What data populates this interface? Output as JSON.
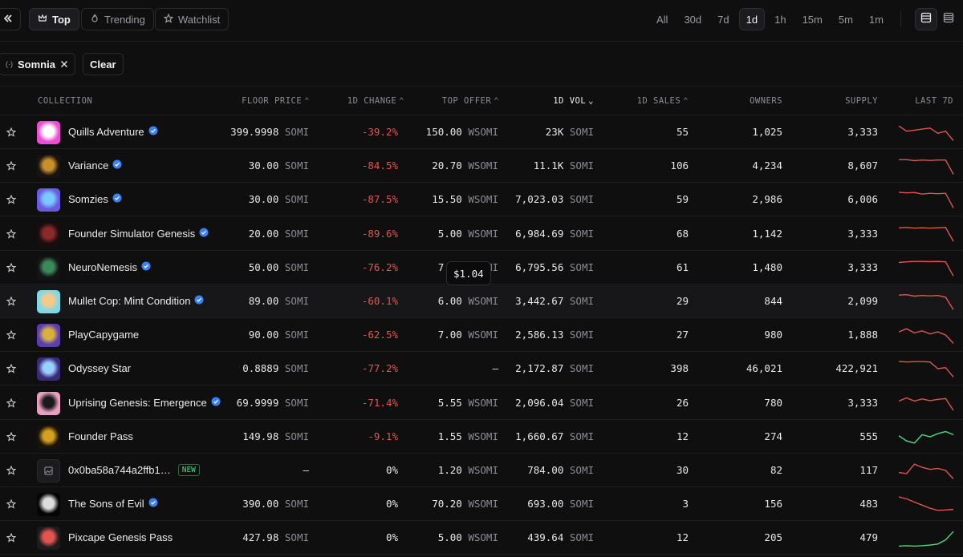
{
  "nav": {
    "tabs": [
      {
        "label": "Top",
        "icon": "crown-icon"
      },
      {
        "label": "Trending",
        "icon": "flame-icon"
      },
      {
        "label": "Watchlist",
        "icon": "star-icon"
      }
    ],
    "periods": [
      "All",
      "30d",
      "7d",
      "1d",
      "1h",
      "15m",
      "5m",
      "1m"
    ],
    "selected_period": "1d"
  },
  "filters": {
    "chain_chip": "Somnia",
    "clear_label": "Clear"
  },
  "columns": {
    "collection": "COLLECTION",
    "floor": "FLOOR PRICE",
    "change": "1D CHANGE",
    "offer": "TOP OFFER",
    "vol": "1D VOL",
    "sales": "1D SALES",
    "owners": "OWNERS",
    "supply": "SUPPLY",
    "last7": "LAST 7D"
  },
  "tooltip": "$1.04",
  "colors": {
    "negative": "#e2554f",
    "positive": "#4ade80",
    "verified": "#3b82f6"
  },
  "rows": [
    {
      "name": "Quills Adventure",
      "verified": true,
      "floor": "399.9998",
      "floor_unit": "SOMI",
      "change": "-39.2%",
      "offer": "150.00",
      "offer_unit": "WSOMI",
      "vol": "23K",
      "vol_unit": "SOMI",
      "sales": "55",
      "owners": "1,025",
      "supply": "3,333",
      "trend": "down",
      "spark": [
        0.8,
        0.55,
        0.6,
        0.65,
        0.7,
        0.45,
        0.55,
        0.1
      ],
      "avatar": [
        "#e94fd0",
        "#ffffff"
      ]
    },
    {
      "name": "Variance",
      "verified": true,
      "floor": "30.00",
      "floor_unit": "SOMI",
      "change": "-84.5%",
      "offer": "20.70",
      "offer_unit": "WSOMI",
      "vol": "11.1K",
      "vol_unit": "SOMI",
      "sales": "106",
      "owners": "4,234",
      "supply": "8,607",
      "trend": "down",
      "spark": [
        0.8,
        0.8,
        0.75,
        0.78,
        0.76,
        0.78,
        0.78,
        0.1
      ],
      "avatar": [
        "#1a1410",
        "#c8902c"
      ]
    },
    {
      "name": "Somzies",
      "verified": true,
      "floor": "30.00",
      "floor_unit": "SOMI",
      "change": "-87.5%",
      "offer": "15.50",
      "offer_unit": "WSOMI",
      "vol": "7,023.03",
      "vol_unit": "SOMI",
      "sales": "59",
      "owners": "2,986",
      "supply": "6,006",
      "trend": "down",
      "spark": [
        0.85,
        0.82,
        0.84,
        0.76,
        0.8,
        0.78,
        0.8,
        0.1
      ],
      "avatar": [
        "#6a5ae0",
        "#79c8ff"
      ]
    },
    {
      "name": "Founder Simulator Genesis",
      "verified": true,
      "floor": "20.00",
      "floor_unit": "SOMI",
      "change": "-89.6%",
      "offer": "5.00",
      "offer_unit": "WSOMI",
      "vol": "6,984.69",
      "vol_unit": "SOMI",
      "sales": "68",
      "owners": "1,142",
      "supply": "3,333",
      "trend": "down",
      "spark": [
        0.8,
        0.82,
        0.78,
        0.8,
        0.78,
        0.8,
        0.82,
        0.15
      ],
      "avatar": [
        "#1a0d0d",
        "#8b2a2a"
      ]
    },
    {
      "name": "NeuroNemesis",
      "verified": true,
      "floor": "50.00",
      "floor_unit": "SOMI",
      "change": "-76.2%",
      "offer": "7.00",
      "offer_unit": "WSOMI",
      "vol": "6,795.56",
      "vol_unit": "SOMI",
      "sales": "61",
      "owners": "1,480",
      "supply": "3,333",
      "trend": "down",
      "spark": [
        0.75,
        0.78,
        0.8,
        0.8,
        0.79,
        0.8,
        0.78,
        0.1
      ],
      "avatar": [
        "#141414",
        "#3a8a5a"
      ]
    },
    {
      "name": "Mullet Cop: Mint Condition",
      "verified": true,
      "floor": "89.00",
      "floor_unit": "SOMI",
      "change": "-60.1%",
      "offer": "6.00",
      "offer_unit": "WSOMI",
      "vol": "3,442.67",
      "vol_unit": "SOMI",
      "sales": "29",
      "owners": "844",
      "supply": "2,099",
      "trend": "down",
      "spark": [
        0.8,
        0.82,
        0.75,
        0.78,
        0.76,
        0.78,
        0.7,
        0.1
      ],
      "avatar": [
        "#7fd8e8",
        "#f4c98a"
      ]
    },
    {
      "name": "PlayCapygame",
      "verified": false,
      "floor": "90.00",
      "floor_unit": "SOMI",
      "change": "-62.5%",
      "offer": "7.00",
      "offer_unit": "WSOMI",
      "vol": "2,586.13",
      "vol_unit": "SOMI",
      "sales": "27",
      "owners": "980",
      "supply": "1,888",
      "trend": "down",
      "spark": [
        0.65,
        0.8,
        0.6,
        0.7,
        0.55,
        0.65,
        0.5,
        0.1
      ],
      "avatar": [
        "#5b3fb0",
        "#d8b040"
      ]
    },
    {
      "name": "Odyssey Star",
      "verified": false,
      "floor": "0.8889",
      "floor_unit": "SOMI",
      "change": "-77.2%",
      "offer": "—",
      "offer_unit": "",
      "vol": "2,172.87",
      "vol_unit": "SOMI",
      "sales": "398",
      "owners": "46,021",
      "supply": "422,921",
      "trend": "down",
      "spark": [
        0.85,
        0.82,
        0.84,
        0.84,
        0.82,
        0.5,
        0.55,
        0.1
      ],
      "avatar": [
        "#3a2a7a",
        "#9ad0ff"
      ]
    },
    {
      "name": "Uprising Genesis: Emergence",
      "verified": true,
      "floor": "69.9999",
      "floor_unit": "SOMI",
      "change": "-71.4%",
      "offer": "5.55",
      "offer_unit": "WSOMI",
      "vol": "2,096.04",
      "vol_unit": "SOMI",
      "sales": "26",
      "owners": "780",
      "supply": "3,333",
      "trend": "down",
      "spark": [
        0.6,
        0.75,
        0.6,
        0.7,
        0.62,
        0.68,
        0.72,
        0.15
      ],
      "avatar": [
        "#e8a0c0",
        "#1a1a1a"
      ]
    },
    {
      "name": "Founder Pass",
      "verified": false,
      "floor": "149.98",
      "floor_unit": "SOMI",
      "change": "-9.1%",
      "offer": "1.55",
      "offer_unit": "WSOMI",
      "vol": "1,660.67",
      "vol_unit": "SOMI",
      "sales": "12",
      "owners": "274",
      "supply": "555",
      "trend": "up",
      "spark": [
        0.55,
        0.3,
        0.2,
        0.6,
        0.5,
        0.65,
        0.75,
        0.6
      ],
      "avatar": [
        "#1a1408",
        "#d4a020"
      ]
    },
    {
      "name": "0x0ba58a744a2ffb1…",
      "verified": false,
      "is_new": true,
      "new_label": "NEW",
      "floor": "—",
      "floor_unit": "",
      "change": "0%",
      "offer": "1.20",
      "offer_unit": "WSOMI",
      "vol": "784.00",
      "vol_unit": "SOMI",
      "sales": "30",
      "owners": "82",
      "supply": "117",
      "trend": "down",
      "spark": [
        0.4,
        0.35,
        0.8,
        0.65,
        0.55,
        0.6,
        0.5,
        0.1
      ],
      "avatar": [
        "#1c1c1f",
        "#8c8c92"
      ]
    },
    {
      "name": "The Sons of Evil",
      "verified": true,
      "floor": "390.00",
      "floor_unit": "SOMI",
      "change": "0%",
      "offer": "70.20",
      "offer_unit": "WSOMI",
      "vol": "693.00",
      "vol_unit": "SOMI",
      "sales": "3",
      "owners": "156",
      "supply": "483",
      "trend": "down",
      "spark": [
        0.85,
        0.75,
        0.6,
        0.45,
        0.3,
        0.2,
        0.22,
        0.25
      ],
      "avatar": [
        "#050505",
        "#dddddd"
      ]
    },
    {
      "name": "Pixcape Genesis Pass",
      "verified": false,
      "floor": "427.98",
      "floor_unit": "SOMI",
      "change": "0%",
      "offer": "5.00",
      "offer_unit": "WSOMI",
      "vol": "439.64",
      "vol_unit": "SOMI",
      "sales": "12",
      "owners": "205",
      "supply": "479",
      "trend": "up",
      "spark": [
        0.1,
        0.12,
        0.1,
        0.12,
        0.15,
        0.2,
        0.4,
        0.8
      ],
      "avatar": [
        "#1c1c1f",
        "#e2554f"
      ]
    }
  ]
}
